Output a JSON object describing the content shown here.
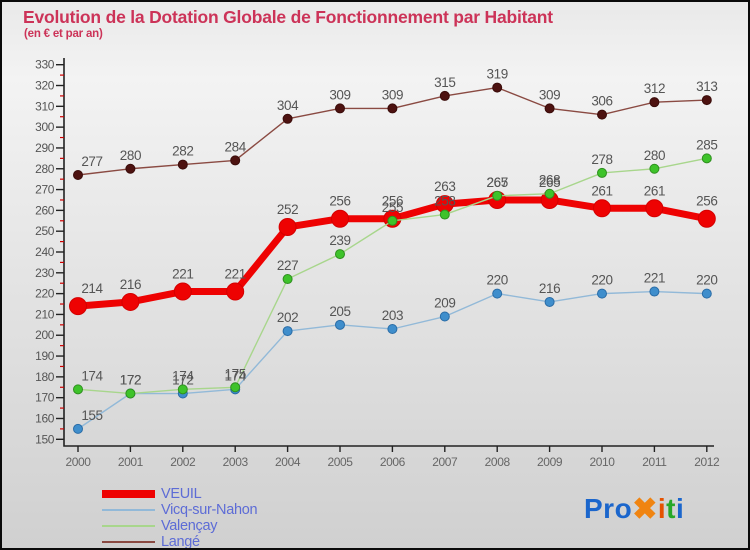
{
  "title": "Evolution de la Dotation Globale de Fonctionnement par Habitant",
  "subtitle": "(en € et par an)",
  "title_color": "#cc3358",
  "chart_data": {
    "type": "line",
    "x": [
      2000,
      2001,
      2002,
      2003,
      2004,
      2005,
      2006,
      2007,
      2008,
      2009,
      2010,
      2011,
      2012
    ],
    "ylim": [
      150,
      330
    ],
    "y_major_step": 10,
    "y_minor_step": 5,
    "grid": false,
    "legend_position": "bottom-left",
    "point_label_color": "#555555",
    "axis_label_color": "#666666",
    "axis_line_color": "#222222",
    "minor_tick_color": "#cc0000",
    "series": [
      {
        "name": "VEUIL",
        "line_color": "#ee0202",
        "dot_color": "#ee0202",
        "dot_stroke": "#d40000",
        "line_width": 7,
        "dot_radius": 8.5,
        "values": [
          214,
          216,
          221,
          221,
          252,
          256,
          256,
          263,
          265,
          265,
          261,
          261,
          256
        ]
      },
      {
        "name": "Vicq-sur-Nahon",
        "line_color": "#92b9d8",
        "dot_color": "#3f8ecc",
        "dot_stroke": "#2a6ca6",
        "line_width": 1.4,
        "dot_radius": 4.5,
        "values": [
          155,
          172,
          172,
          174,
          202,
          205,
          203,
          209,
          220,
          216,
          220,
          221,
          220
        ]
      },
      {
        "name": "Valençay",
        "line_color": "#a8d68c",
        "dot_color": "#3ec32a",
        "dot_stroke": "#2f8f1f",
        "line_width": 1.4,
        "dot_radius": 4.5,
        "values": [
          174,
          172,
          174,
          175,
          227,
          239,
          255,
          258,
          267,
          268,
          278,
          280,
          285
        ]
      },
      {
        "name": "Langé",
        "line_color": "#8a4a42",
        "dot_color": "#4d1210",
        "dot_stroke": "#3a0c0a",
        "line_width": 1.4,
        "dot_radius": 4.5,
        "values": [
          277,
          280,
          282,
          284,
          304,
          309,
          309,
          315,
          319,
          309,
          306,
          312,
          313
        ]
      }
    ]
  },
  "logo": {
    "segments": [
      {
        "text": "Pro",
        "color": "#1b66cc"
      },
      {
        "text": "✖",
        "color": "#f08411"
      },
      {
        "text": "i",
        "color": "#e55200"
      },
      {
        "text": "t",
        "color": "#28a828"
      },
      {
        "text": "i",
        "color": "#1b66cc"
      }
    ]
  }
}
